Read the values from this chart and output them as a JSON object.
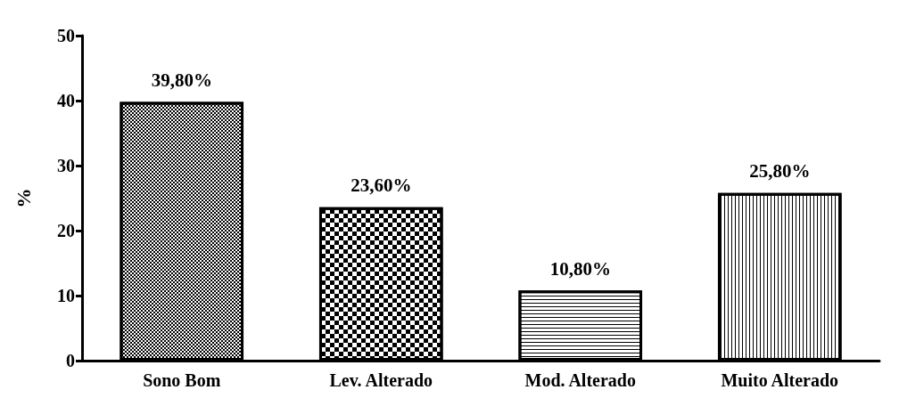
{
  "chart_data": {
    "type": "bar",
    "categories": [
      "Sono Bom",
      "Lev. Alterado",
      "Mod. Alterado",
      "Muito Alterado"
    ],
    "values": [
      39.8,
      23.6,
      10.8,
      25.8
    ],
    "value_labels": [
      "39,80%",
      "23,60%",
      "10,80%",
      "25,80%"
    ],
    "colors": [
      "#000000",
      "#000000",
      "#000000",
      "#000000"
    ],
    "ylabel": "%",
    "ylim": [
      0,
      50
    ],
    "yticks": [
      0,
      10,
      20,
      30,
      40,
      50
    ],
    "grid": false
  }
}
